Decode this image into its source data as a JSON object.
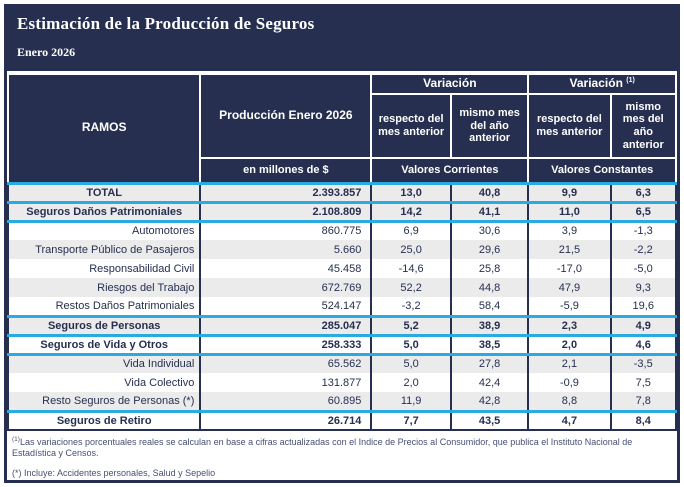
{
  "title": "Estimación de la Producción de Seguros",
  "period": "Enero 2026",
  "colors": {
    "navy": "#262f50",
    "cyan": "#29abe2",
    "row_alt": "#ebebeb"
  },
  "header": {
    "ramos": "RAMOS",
    "produccion": "Producción Enero 2026",
    "variacion_corrientes": "Variación",
    "variacion_constantes": "Variación ",
    "variacion_constantes_sup": "(1)",
    "sub_corrientes_mes": "respecto del mes anterior",
    "sub_corrientes_anio": "mismo mes del año anterior",
    "sub_constantes_mes": "respecto del mes anterior",
    "sub_constantes_anio": "mismo mes del año anterior",
    "unit": "en millones de $",
    "valores_corrientes": "Valores Corrientes",
    "valores_constantes": "Valores Constantes"
  },
  "rows": [
    {
      "label": "TOTAL",
      "produccion": "2.393.857",
      "vc_mes": "13,0",
      "vc_anio": "40,8",
      "vk_mes": "9,9",
      "vk_anio": "6,3"
    },
    {
      "label": "Seguros Daños Patrimoniales",
      "produccion": "2.108.809",
      "vc_mes": "14,2",
      "vc_anio": "41,1",
      "vk_mes": "11,0",
      "vk_anio": "6,5"
    },
    {
      "label": "Automotores",
      "produccion": "860.775",
      "vc_mes": "6,9",
      "vc_anio": "30,6",
      "vk_mes": "3,9",
      "vk_anio": "-1,3"
    },
    {
      "label": "Transporte Público de Pasajeros",
      "produccion": "5.660",
      "vc_mes": "25,0",
      "vc_anio": "29,6",
      "vk_mes": "21,5",
      "vk_anio": "-2,2"
    },
    {
      "label": "Responsabilidad Civil",
      "produccion": "45.458",
      "vc_mes": "-14,6",
      "vc_anio": "25,8",
      "vk_mes": "-17,0",
      "vk_anio": "-5,0"
    },
    {
      "label": "Riesgos del Trabajo",
      "produccion": "672.769",
      "vc_mes": "52,2",
      "vc_anio": "44,8",
      "vk_mes": "47,9",
      "vk_anio": "9,3"
    },
    {
      "label": "Restos Daños Patrimoniales",
      "produccion": "524.147",
      "vc_mes": "-3,2",
      "vc_anio": "58,4",
      "vk_mes": "-5,9",
      "vk_anio": "19,6"
    },
    {
      "label": "Seguros de Personas",
      "produccion": "285.047",
      "vc_mes": "5,2",
      "vc_anio": "38,9",
      "vk_mes": "2,3",
      "vk_anio": "4,9"
    },
    {
      "label": "Seguros de Vida y Otros",
      "produccion": "258.333",
      "vc_mes": "5,0",
      "vc_anio": "38,5",
      "vk_mes": "2,0",
      "vk_anio": "4,6"
    },
    {
      "label": "Vida Individual",
      "produccion": "65.562",
      "vc_mes": "5,0",
      "vc_anio": "27,8",
      "vk_mes": "2,1",
      "vk_anio": "-3,5"
    },
    {
      "label": "Vida Colectivo",
      "produccion": "131.877",
      "vc_mes": "2,0",
      "vc_anio": "42,4",
      "vk_mes": "-0,9",
      "vk_anio": "7,5"
    },
    {
      "label": "Resto Seguros de Personas (*)",
      "produccion": "60.895",
      "vc_mes": "11,9",
      "vc_anio": "42,8",
      "vk_mes": "8,8",
      "vk_anio": "7,8"
    },
    {
      "label": "Seguros de Retiro",
      "produccion": "26.714",
      "vc_mes": "7,7",
      "vc_anio": "43,5",
      "vk_mes": "4,7",
      "vk_anio": "8,4"
    }
  ],
  "footnotes": {
    "note1_sup": "(1)",
    "note1": "Las variaciones porcentuales reales se calculan en base a cifras actualizadas con el Indice de Precios al Consumidor, que publica el Instituto Nacional de Estadística y Censos.",
    "note2": "(*) Incluye: Accidentes personales, Salud y Sepelio"
  }
}
